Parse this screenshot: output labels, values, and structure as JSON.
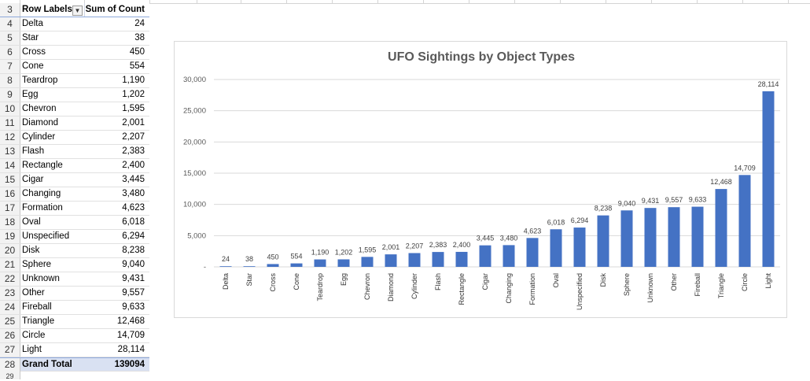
{
  "pivot": {
    "header": {
      "row_number": "3",
      "label": "Row Labels",
      "value": "Sum of Count",
      "sort_icon": "sort-filter-icon"
    },
    "rows": [
      {
        "n": "4",
        "label": "Delta",
        "value": "24"
      },
      {
        "n": "5",
        "label": "Star",
        "value": "38"
      },
      {
        "n": "6",
        "label": "Cross",
        "value": "450"
      },
      {
        "n": "7",
        "label": "Cone",
        "value": "554"
      },
      {
        "n": "8",
        "label": "Teardrop",
        "value": "1,190"
      },
      {
        "n": "9",
        "label": "Egg",
        "value": "1,202"
      },
      {
        "n": "10",
        "label": "Chevron",
        "value": "1,595"
      },
      {
        "n": "11",
        "label": "Diamond",
        "value": "2,001"
      },
      {
        "n": "12",
        "label": "Cylinder",
        "value": "2,207"
      },
      {
        "n": "13",
        "label": "Flash",
        "value": "2,383"
      },
      {
        "n": "14",
        "label": "Rectangle",
        "value": "2,400"
      },
      {
        "n": "15",
        "label": "Cigar",
        "value": "3,445"
      },
      {
        "n": "16",
        "label": "Changing",
        "value": "3,480"
      },
      {
        "n": "17",
        "label": "Formation",
        "value": "4,623"
      },
      {
        "n": "18",
        "label": "Oval",
        "value": "6,018"
      },
      {
        "n": "19",
        "label": "Unspecified",
        "value": "6,294"
      },
      {
        "n": "20",
        "label": "Disk",
        "value": "8,238"
      },
      {
        "n": "21",
        "label": "Sphere",
        "value": "9,040"
      },
      {
        "n": "22",
        "label": "Unknown",
        "value": "9,431"
      },
      {
        "n": "23",
        "label": "Other",
        "value": "9,557"
      },
      {
        "n": "24",
        "label": "Fireball",
        "value": "9,633"
      },
      {
        "n": "25",
        "label": "Triangle",
        "value": "12,468"
      },
      {
        "n": "26",
        "label": "Circle",
        "value": "14,709"
      },
      {
        "n": "27",
        "label": "Light",
        "value": "28,114"
      }
    ],
    "total": {
      "n": "28",
      "label": "Grand Total",
      "value": "139094"
    },
    "next_row_number": "29"
  },
  "chart_data": {
    "type": "bar",
    "title": "UFO Sightings by Object Types",
    "categories": [
      "Delta",
      "Star",
      "Cross",
      "Cone",
      "Teardrop",
      "Egg",
      "Chevron",
      "Diamond",
      "Cylinder",
      "Flash",
      "Rectangle",
      "Cigar",
      "Changing",
      "Formation",
      "Oval",
      "Unspecified",
      "Disk",
      "Sphere",
      "Unknown",
      "Other",
      "Fireball",
      "Triangle",
      "Circle",
      "Light"
    ],
    "values": [
      24,
      38,
      450,
      554,
      1190,
      1202,
      1595,
      2001,
      2207,
      2383,
      2400,
      3445,
      3480,
      4623,
      6018,
      6294,
      8238,
      9040,
      9431,
      9557,
      9633,
      12468,
      14709,
      28114
    ],
    "data_labels": [
      "24",
      "38",
      "450",
      "554",
      "1,190",
      "1,202",
      "1,595",
      "2,001",
      "2,207",
      "2,383",
      "2,400",
      "3,445",
      "3,480",
      "4,623",
      "6,018",
      "6,294",
      "8,238",
      "9,040",
      "9,431",
      "9,557",
      "9,633",
      "12,468",
      "14,709",
      "28,114"
    ],
    "yticks": [
      0,
      5000,
      10000,
      15000,
      20000,
      25000,
      30000
    ],
    "ytick_labels": [
      "-",
      "5,000",
      "10,000",
      "15,000",
      "20,000",
      "25,000",
      "30,000"
    ],
    "ylim": [
      0,
      30000
    ],
    "grid": true,
    "legend": "none",
    "bar_color": "#4472c4"
  }
}
